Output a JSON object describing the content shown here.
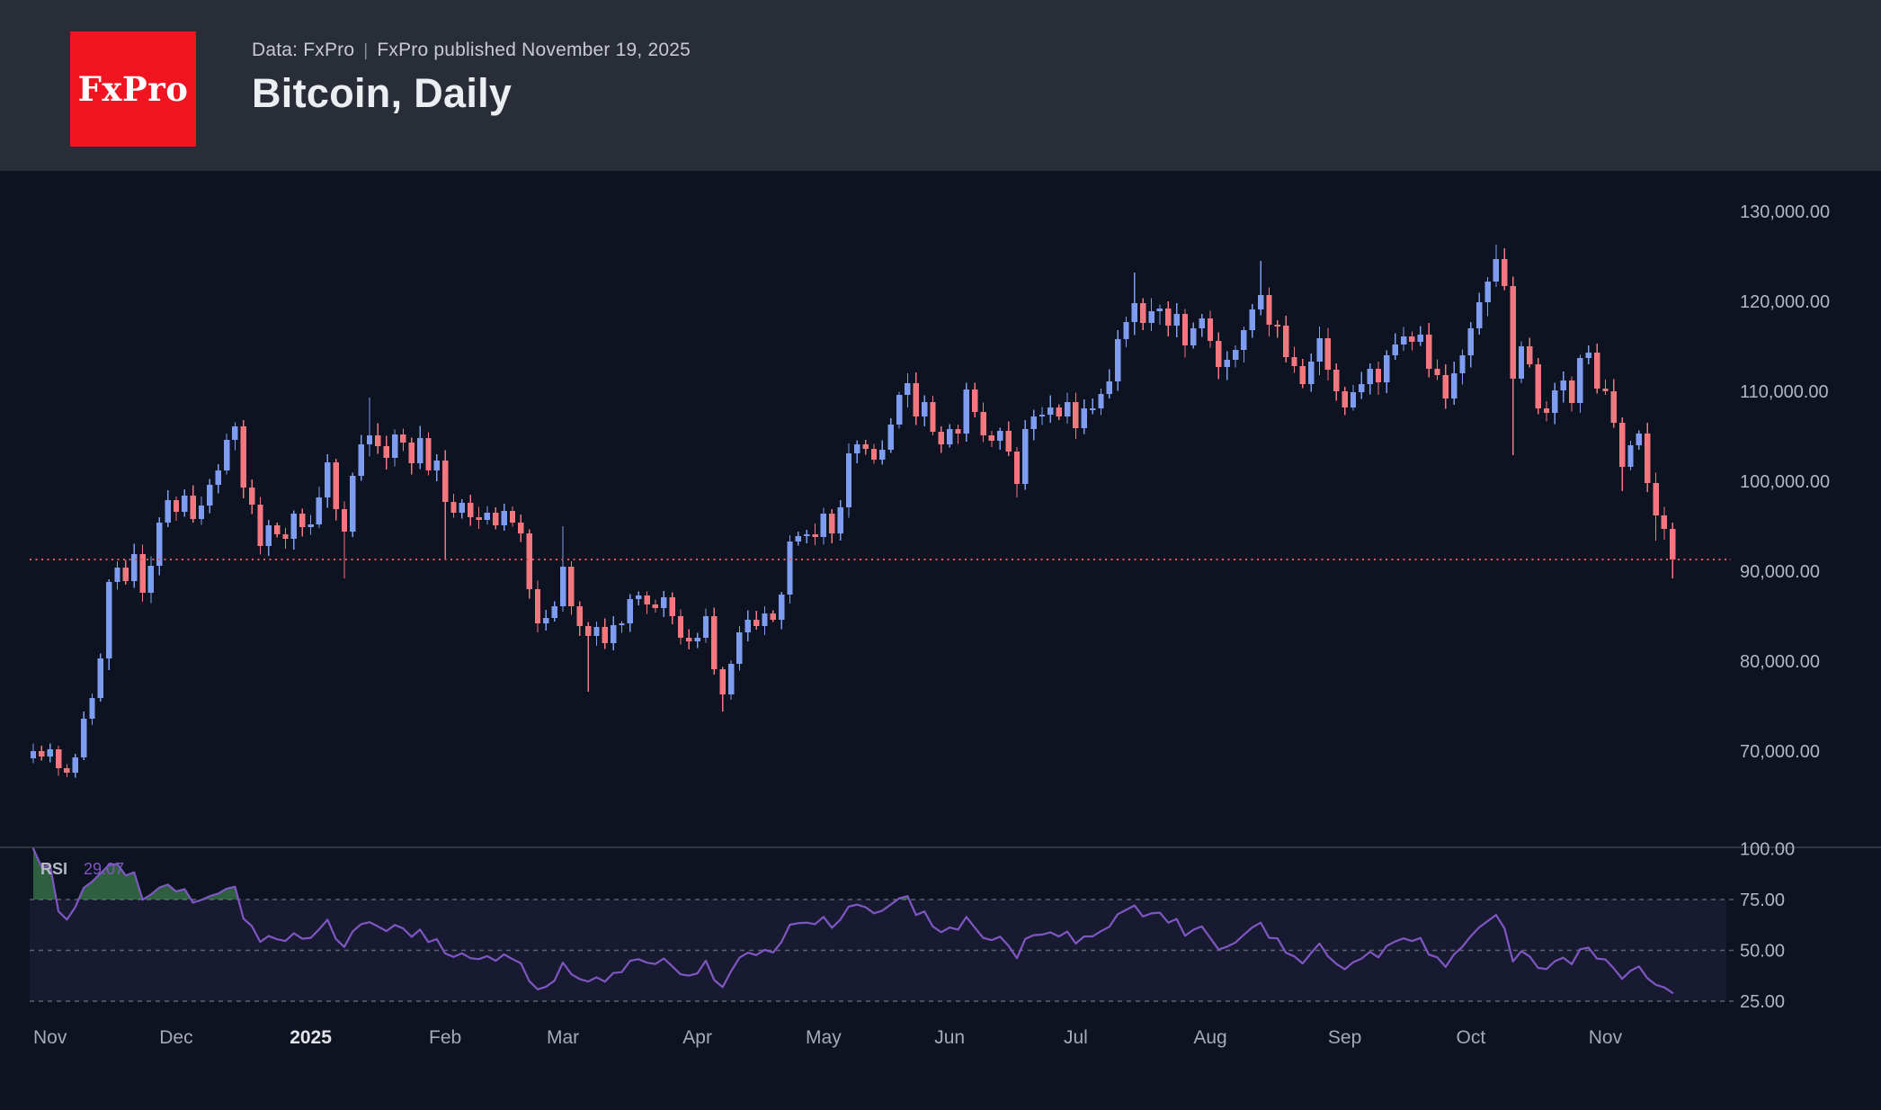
{
  "header": {
    "logo_text": "FxPro",
    "source_line": "Data: FxPro",
    "separator": "|",
    "published_line": "FxPro published November 19, 2025",
    "title": "Bitcoin, Daily"
  },
  "colors": {
    "header_bg": "#292d38",
    "chart_bg": "#0d1321",
    "logo_red": "#f01420",
    "up_candle": "#7e9cf0",
    "down_candle": "#f4767e",
    "price_dotted_line": "#ef5360",
    "rsi_line": "#7e57c2",
    "rsi_band_fill": "rgba(126,87,194,0.10)",
    "rsi_overbought_fill": "rgba(74,160,90,0.55)",
    "rsi_oversold_fill": "rgba(239,83,80,0.55)",
    "axis_text": "#b2b6c0",
    "month_text": "#a6aab4",
    "year_text": "#e3e5e9",
    "separator_line": "#3f434e",
    "dashed_level_line": "#9a9daa"
  },
  "chart_data": {
    "type": "candlestick",
    "title": "Bitcoin, Daily",
    "price_axis_ticks": [
      {
        "label": "130,000.00",
        "value_k": 130
      },
      {
        "label": "120,000.00",
        "value_k": 120
      },
      {
        "label": "110,000.00",
        "value_k": 110
      },
      {
        "label": "100,000.00",
        "value_k": 100
      },
      {
        "label": "90,000.00",
        "value_k": 90
      },
      {
        "label": "80,000.00",
        "value_k": 80
      },
      {
        "label": "70,000.00",
        "value_k": 70
      }
    ],
    "ylim_k": [
      66,
      131.5
    ],
    "price_line": {
      "value_k": 91.3,
      "style": "dotted"
    },
    "x_axis_months": [
      {
        "label": "Nov",
        "idx": 2,
        "bold": false
      },
      {
        "label": "Dec",
        "idx": 17,
        "bold": false
      },
      {
        "label": "2025",
        "idx": 33,
        "bold": true
      },
      {
        "label": "Feb",
        "idx": 49,
        "bold": false
      },
      {
        "label": "Mar",
        "idx": 63,
        "bold": false
      },
      {
        "label": "Apr",
        "idx": 79,
        "bold": false
      },
      {
        "label": "May",
        "idx": 94,
        "bold": false
      },
      {
        "label": "Jun",
        "idx": 109,
        "bold": false
      },
      {
        "label": "Jul",
        "idx": 124,
        "bold": false
      },
      {
        "label": "Aug",
        "idx": 140,
        "bold": false
      },
      {
        "label": "Sep",
        "idx": 156,
        "bold": false
      },
      {
        "label": "Oct",
        "idx": 171,
        "bold": false
      },
      {
        "label": "Nov",
        "idx": 187,
        "bold": false
      }
    ],
    "candles": {
      "closes_k": [
        70.0,
        69.4,
        70.2,
        68.1,
        67.6,
        69.3,
        73.6,
        75.9,
        80.3,
        88.8,
        90.4,
        88.9,
        91.9,
        87.6,
        90.6,
        95.4,
        97.9,
        96.6,
        98.4,
        95.8,
        97.3,
        99.6,
        101.2,
        104.6,
        106.1,
        99.3,
        97.4,
        92.8,
        95.1,
        94.1,
        93.6,
        96.4,
        94.9,
        95.2,
        98.2,
        102.1,
        96.9,
        94.4,
        100.6,
        104.1,
        105.1,
        103.9,
        102.6,
        105.2,
        104.3,
        102.0,
        104.8,
        101.2,
        102.3,
        97.7,
        96.5,
        97.6,
        96.0,
        95.7,
        96.5,
        95.1,
        96.7,
        95.4,
        94.2,
        88.0,
        84.2,
        84.8,
        86.1,
        90.5,
        86.1,
        83.9,
        82.8,
        83.8,
        82.0,
        84.0,
        84.2,
        86.9,
        87.3,
        86.3,
        85.9,
        87.1,
        85.0,
        82.6,
        82.2,
        82.6,
        85.0,
        79.1,
        76.3,
        79.7,
        83.2,
        84.6,
        83.9,
        85.3,
        84.6,
        87.4,
        93.3,
        93.9,
        94.1,
        93.8,
        96.4,
        94.2,
        97.1,
        103.1,
        104.1,
        103.6,
        102.4,
        103.5,
        106.3,
        109.6,
        110.9,
        107.2,
        108.8,
        105.5,
        104.1,
        105.8,
        105.3,
        110.2,
        107.7,
        105.1,
        104.5,
        105.6,
        103.3,
        99.7,
        105.8,
        107.2,
        107.4,
        108.2,
        107.2,
        108.8,
        105.9,
        108.1,
        108.1,
        109.7,
        111.1,
        115.8,
        117.7,
        119.8,
        117.6,
        118.9,
        119.2,
        117.3,
        118.6,
        115.1,
        117.0,
        118.1,
        115.6,
        112.7,
        113.5,
        114.6,
        116.8,
        119.1,
        120.7,
        117.4,
        117.3,
        113.8,
        112.8,
        110.8,
        113.3,
        115.9,
        112.4,
        110.0,
        108.2,
        109.9,
        110.8,
        112.5,
        111.0,
        114.0,
        115.2,
        116.1,
        115.5,
        116.3,
        112.5,
        111.8,
        109.2,
        112.0,
        114.0,
        117.0,
        119.9,
        122.2,
        124.7,
        121.7,
        111.4,
        115.0,
        113.0,
        108.1,
        107.6,
        110.1,
        111.2,
        108.7,
        113.7,
        114.3,
        110.3,
        110.0,
        106.5,
        101.6,
        104.0,
        105.3,
        99.8,
        96.2,
        94.7,
        91.3
      ],
      "wick_overrides": {
        "9": {
          "low_k": 79.0
        },
        "37": {
          "low_k": 89.2
        },
        "40": {
          "high_k": 109.3
        },
        "49": {
          "low_k": 91.3
        },
        "63": {
          "high_k": 95.0
        },
        "66": {
          "low_k": 76.6
        },
        "82": {
          "low_k": 74.4
        },
        "104": {
          "high_k": 112.0
        },
        "117": {
          "low_k": 98.2
        },
        "131": {
          "high_k": 123.2
        },
        "146": {
          "high_k": 124.5
        },
        "174": {
          "high_k": 126.3
        },
        "176": {
          "low_k": 102.9
        },
        "189": {
          "low_k": 98.9
        },
        "193": {
          "low_k": 93.4
        },
        "195": {
          "low_k": 89.2
        }
      }
    },
    "rsi": {
      "label": "RSI",
      "value_label": "29.07",
      "period": 14,
      "upper_band": 75,
      "middle_band": 50,
      "lower_band": 25,
      "axis_ticks": [
        {
          "label": "100.00",
          "value": 100
        },
        {
          "label": "75.00",
          "value": 75
        },
        {
          "label": "50.00",
          "value": 50
        },
        {
          "label": "25.00",
          "value": 25
        }
      ]
    }
  }
}
